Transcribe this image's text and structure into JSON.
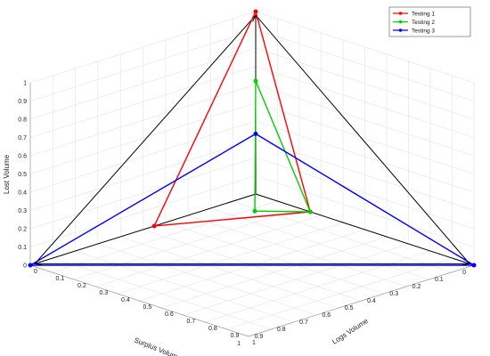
{
  "chart_data": {
    "type": "line",
    "projection": "3d",
    "title": "",
    "xlabel": "Logs Volume",
    "ylabel": "Surplus Volume",
    "zlabel": "Lost Volume",
    "xlim": [
      0,
      1
    ],
    "ylim": [
      0,
      1
    ],
    "zlim": [
      0,
      1
    ],
    "x_ticks": [
      "0",
      "0.1",
      "0.2",
      "0.3",
      "0.4",
      "0.5",
      "0.6",
      "0.7",
      "0.8",
      "0.9",
      "1"
    ],
    "y_ticks": [
      "0",
      "0.1",
      "0.2",
      "0.3",
      "0.4",
      "0.5",
      "0.6",
      "0.7",
      "0.8",
      "0.9",
      "1"
    ],
    "z_ticks": [
      "0",
      "0.1",
      "0.2",
      "0.3",
      "0.4",
      "0.5",
      "0.6",
      "0.7",
      "0.8",
      "0.9",
      "1"
    ],
    "grid": true,
    "legend_position": "top-right",
    "reference_triangle": {
      "color": "#000000",
      "vertices": [
        [
          0.98,
          0,
          0
        ],
        [
          0,
          0.98,
          0
        ],
        [
          0,
          0,
          0.98
        ]
      ]
    },
    "series": [
      {
        "name": "Testing 1",
        "color": "#ff0000",
        "closed": true,
        "points": [
          [
            0.25,
            0,
            0
          ],
          [
            0,
            0.45,
            0
          ],
          [
            0,
            0,
            1
          ]
        ]
      },
      {
        "name": "Testing 2",
        "color": "#00d000",
        "closed": true,
        "points": [
          [
            0.25,
            0,
            0
          ],
          [
            0.12,
            0.12,
            0
          ],
          [
            0,
            0,
            0.62
          ]
        ]
      },
      {
        "name": "Testing 3",
        "color": "#0000ff",
        "closed": true,
        "points": [
          [
            1,
            0,
            0
          ],
          [
            0,
            1,
            0
          ],
          [
            0,
            0,
            0.33
          ]
        ]
      }
    ]
  }
}
